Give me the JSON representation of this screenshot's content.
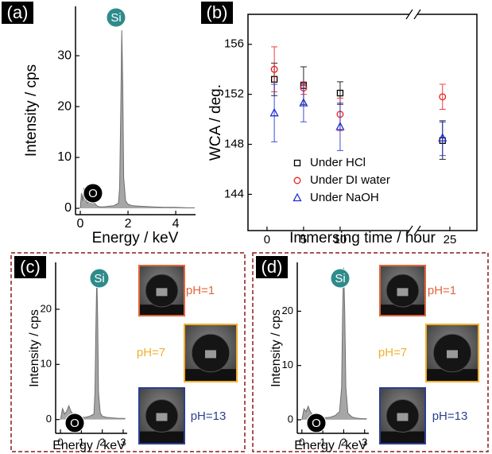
{
  "chart_data": [
    {
      "type": "area",
      "label": "(a)",
      "xlabel": "Energy / keV",
      "ylabel": "Intensity / cps",
      "x": [
        0,
        0.05,
        0.1,
        0.15,
        0.2,
        0.3,
        0.4,
        0.5,
        0.6,
        0.7,
        0.8,
        1.0,
        1.2,
        1.4,
        1.6,
        1.65,
        1.7,
        1.74,
        1.78,
        1.82,
        1.9,
        2.0,
        2.2,
        2.5,
        3,
        3.5,
        4,
        4.5,
        4.8
      ],
      "values": [
        0,
        3,
        1.5,
        4,
        2,
        1,
        1.5,
        2,
        1,
        0.5,
        0.3,
        0.3,
        0.4,
        0.5,
        1,
        4,
        20,
        35,
        25,
        6,
        1.5,
        0.8,
        0.5,
        0.4,
        0.3,
        0.2,
        0.2,
        0.1,
        0.1
      ],
      "color": "#a6a6a6",
      "xlim": [
        -0.2,
        4.83
      ],
      "ylim": [
        -1.25,
        39.7
      ],
      "xticks": [
        0,
        2,
        4
      ],
      "yticks": [
        0,
        10,
        20,
        30
      ],
      "annotations": [
        "Si",
        "O"
      ]
    },
    {
      "type": "scatter",
      "label": "(b)",
      "xlabel": "Immersing time / hour",
      "ylabel": "WCA / deg.",
      "x": [
        1,
        5,
        10,
        24
      ],
      "series": [
        {
          "name": "Under HCl",
          "color": "#000000",
          "marker": "square",
          "values": [
            153.2,
            152.7,
            152.1,
            148.3
          ],
          "errors": [
            1.3,
            1.5,
            0.9,
            1.5
          ]
        },
        {
          "name": "Under DI water",
          "color": "#e8201c",
          "marker": "circle",
          "values": [
            154.0,
            152.5,
            150.4,
            151.8
          ],
          "errors": [
            1.8,
            0.5,
            1.3,
            1.0
          ]
        },
        {
          "name": "Under NaOH",
          "color": "#1f2fd0",
          "marker": "triangle",
          "values": [
            150.5,
            151.3,
            149.4,
            148.5
          ],
          "errors": [
            2.3,
            1.5,
            1.9,
            1.4
          ]
        }
      ],
      "xlim": [
        -2.6,
        28.7
      ],
      "ylim": [
        141.1,
        158.4
      ],
      "xticks": [
        0,
        5,
        10,
        25
      ],
      "yticks": [
        144,
        148,
        152,
        156
      ],
      "legend": "lower center"
    },
    {
      "type": "area",
      "label": "(c)",
      "xlabel": "Energy / keV",
      "ylabel": "Intensity / cps",
      "x": [
        0,
        0.1,
        0.2,
        0.3,
        0.4,
        0.5,
        0.6,
        0.8,
        1.0,
        1.2,
        1.4,
        1.6,
        1.65,
        1.7,
        1.74,
        1.78,
        1.82,
        1.9,
        2.0,
        2.2,
        2.5,
        2.8,
        3.1
      ],
      "values": [
        0,
        2,
        1,
        1.5,
        2.5,
        1.5,
        1,
        0.5,
        0.4,
        0.4,
        0.6,
        1,
        5,
        18,
        26,
        18,
        5,
        1.2,
        0.6,
        0.4,
        0.3,
        0.2,
        0.2
      ],
      "color": "#a6a6a6",
      "xlim": [
        -0.23,
        3.19
      ],
      "ylim": [
        -2.5,
        28.5
      ],
      "xticks": [
        0,
        1,
        2,
        3
      ],
      "yticks": [
        0,
        10,
        20
      ],
      "annotations": [
        "Si",
        "O"
      ],
      "images": [
        {
          "label": "pH=1",
          "color": "#e0653a"
        },
        {
          "label": "pH=7",
          "color": "#f0b030"
        },
        {
          "label": "pH=13",
          "color": "#2a3f8f"
        }
      ]
    },
    {
      "type": "area",
      "label": "(d)",
      "xlabel": "Energy / keV",
      "ylabel": "Intensity / cps",
      "x": [
        0,
        0.1,
        0.2,
        0.3,
        0.4,
        0.5,
        0.6,
        0.8,
        1.0,
        1.2,
        1.4,
        1.6,
        1.8,
        1.9,
        1.95,
        2.0,
        2.05,
        2.1,
        2.2,
        2.4,
        2.6,
        2.9,
        3.1
      ],
      "values": [
        0,
        2,
        1.5,
        2.5,
        1.5,
        1,
        0.8,
        0.5,
        0.4,
        0.4,
        0.5,
        0.8,
        1.5,
        6,
        20,
        28,
        20,
        6,
        1.2,
        0.5,
        0.3,
        0.2,
        0.2
      ],
      "color": "#a6a6a6",
      "xlim": [
        -0.22,
        3.2
      ],
      "ylim": [
        -2.5,
        29
      ],
      "xticks": [
        0,
        1,
        2,
        3
      ],
      "yticks": [
        0,
        10,
        20
      ],
      "annotations": [
        "Si",
        "O"
      ],
      "images": [
        {
          "label": "pH=1",
          "color": "#e0653a"
        },
        {
          "label": "pH=7",
          "color": "#f0b030"
        },
        {
          "label": "pH=13",
          "color": "#2a3f8f"
        }
      ]
    }
  ]
}
